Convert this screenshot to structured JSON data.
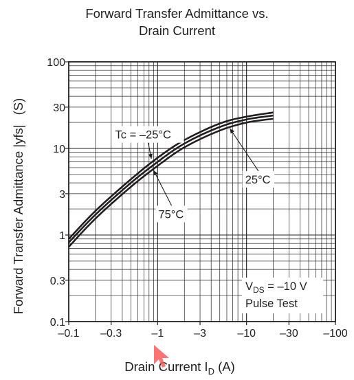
{
  "chart_data": {
    "type": "line",
    "title": "Forward Transfer Admittance vs. Drain Current",
    "title_lines": [
      "Forward Transfer Admittance vs.",
      "Drain Current"
    ],
    "xlabel": {
      "main": "Drain Current",
      "symbol": "I",
      "subscript": "D",
      "unit": "(A)"
    },
    "ylabel": {
      "main": "Forward Transfer Admittance  |yfs|",
      "unit": "(S)"
    },
    "x_scale": "log",
    "y_scale": "log",
    "x_axis_note": "drain current plotted as magnitude; tick labels show negative values",
    "xlim": [
      0.1,
      100
    ],
    "ylim": [
      0.1,
      100
    ],
    "grid": true,
    "x_ticks": [
      {
        "value": 0.1,
        "label": "–0.1"
      },
      {
        "value": 0.3,
        "label": "–0.3"
      },
      {
        "value": 1,
        "label": "–1"
      },
      {
        "value": 3,
        "label": "–3"
      },
      {
        "value": 10,
        "label": "–10"
      },
      {
        "value": 30,
        "label": "–30"
      },
      {
        "value": 100,
        "label": "–100"
      }
    ],
    "y_ticks": [
      {
        "value": 0.1,
        "label": "0.1"
      },
      {
        "value": 0.3,
        "label": "0.3"
      },
      {
        "value": 1,
        "label": "1"
      },
      {
        "value": 3,
        "label": "3"
      },
      {
        "value": 10,
        "label": "10"
      },
      {
        "value": 30,
        "label": "30"
      },
      {
        "value": 100,
        "label": "100"
      }
    ],
    "series": [
      {
        "name": "Tc = –25°C",
        "x": [
          0.1,
          0.2,
          0.5,
          1,
          2,
          5,
          10,
          20
        ],
        "y": [
          0.9,
          1.9,
          4.4,
          7.8,
          12.5,
          19.4,
          23.3,
          26.0
        ]
      },
      {
        "name": "25°C",
        "x": [
          0.1,
          0.2,
          0.5,
          1,
          2,
          5,
          10,
          20
        ],
        "y": [
          0.82,
          1.72,
          4.0,
          7.0,
          11.4,
          17.7,
          21.6,
          24.0
        ]
      },
      {
        "name": "75°C",
        "x": [
          0.1,
          0.2,
          0.5,
          1,
          2,
          5,
          10,
          20
        ],
        "y": [
          0.73,
          1.55,
          3.6,
          6.3,
          10.3,
          16.1,
          19.9,
          22.0
        ]
      }
    ],
    "annotations": [
      {
        "text": "Tc = –25°C",
        "box_x": 0.31,
        "box_y": 14.5,
        "arrow_to": [
          0.85,
          7.6
        ]
      },
      {
        "text": "25°C",
        "box_x": 9.0,
        "box_y": 4.4,
        "arrow_to": [
          6.5,
          17.0
        ]
      },
      {
        "text": "75°C",
        "box_x": 0.95,
        "box_y": 1.75,
        "arrow_to": [
          0.9,
          5.6
        ]
      }
    ],
    "note": {
      "symbol": "V",
      "subscript": "DS",
      "value": " = –10 V",
      "line2": "Pulse Test"
    }
  }
}
